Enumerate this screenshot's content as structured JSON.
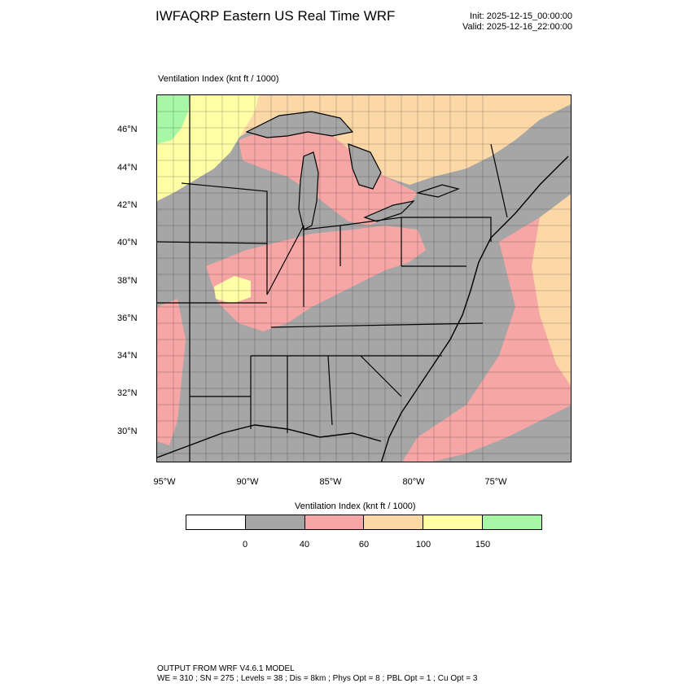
{
  "header": {
    "title": "IWFAQRP Eastern US Real Time WRF",
    "init": "Init: 2025-12-15_00:00:00",
    "valid": "Valid: 2025-12-16_22:00:00"
  },
  "map": {
    "field_title": "Ventilation Index   (knt ft / 1000)",
    "lat_labels": [
      "46°N",
      "44°N",
      "42°N",
      "40°N",
      "38°N",
      "36°N",
      "34°N",
      "32°N",
      "30°N"
    ],
    "lon_labels": [
      "95°W",
      "90°W",
      "85°W",
      "80°W",
      "75°W"
    ],
    "colors": {
      "water": "#a6a6a6",
      "level_0_40": "#a6a6a6",
      "level_40_60": "#f7a6a6",
      "level_60_100": "#fcd8a6",
      "level_100_150": "#ffffa6",
      "level_150_plus": "#a6f7a6",
      "lines": "#000000"
    }
  },
  "colorbar": {
    "title": "Ventilation Index  (knt ft / 1000)",
    "colors": [
      "#ffffff",
      "#a6a6a6",
      "#f7a6a6",
      "#fcd8a6",
      "#ffffa6",
      "#a6f7a6"
    ],
    "labels": [
      "0",
      "40",
      "60",
      "100",
      "150"
    ]
  },
  "footer": {
    "line1": "OUTPUT FROM WRF V4.6.1 MODEL",
    "line2": "WE = 310 ; SN = 275 ; Levels = 38 ; Dis = 8km ; Phys Opt = 8 ; PBL Opt = 1 ; Cu Opt = 3"
  }
}
